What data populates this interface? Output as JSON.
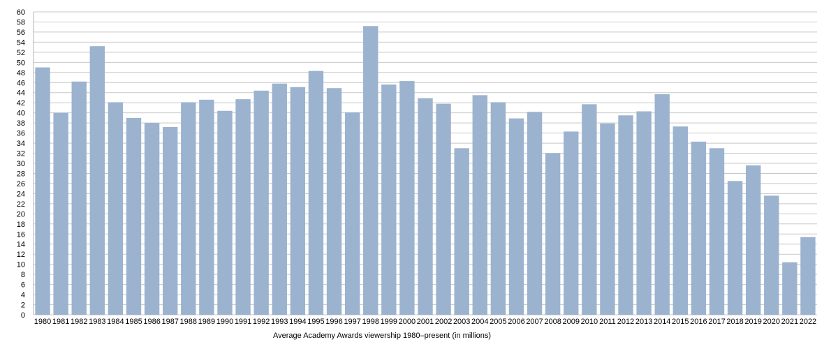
{
  "chart_data": {
    "type": "bar",
    "title": "",
    "caption": "Average Academy Awards viewership 1980–present (in millions)",
    "xlabel": "",
    "ylabel": "",
    "ylim": [
      0,
      60
    ],
    "ytick_step": 2,
    "grid": true,
    "legend": "none",
    "bar_color": "#9cb3cf",
    "grid_color": "#c8c8c8",
    "categories": [
      "1980",
      "1981",
      "1982",
      "1983",
      "1984",
      "1985",
      "1986",
      "1987",
      "1988",
      "1989",
      "1990",
      "1991",
      "1992",
      "1993",
      "1994",
      "1995",
      "1996",
      "1997",
      "1998",
      "1999",
      "2000",
      "2001",
      "2002",
      "2003",
      "2004",
      "2005",
      "2006",
      "2007",
      "2008",
      "2009",
      "2010",
      "2011",
      "2012",
      "2013",
      "2014",
      "2015",
      "2016",
      "2017",
      "2018",
      "2019",
      "2020",
      "2021",
      "2022"
    ],
    "values": [
      49.0,
      40.0,
      46.2,
      53.2,
      42.1,
      39.0,
      38.0,
      37.2,
      42.1,
      42.6,
      40.4,
      42.7,
      44.4,
      45.8,
      45.1,
      48.3,
      44.9,
      40.1,
      57.2,
      45.6,
      46.3,
      42.9,
      41.8,
      33.0,
      43.5,
      42.1,
      38.9,
      40.2,
      32.0,
      36.3,
      41.7,
      37.9,
      39.5,
      40.3,
      43.7,
      37.3,
      34.3,
      33.0,
      26.5,
      29.6,
      23.6,
      10.4,
      15.4
    ]
  }
}
